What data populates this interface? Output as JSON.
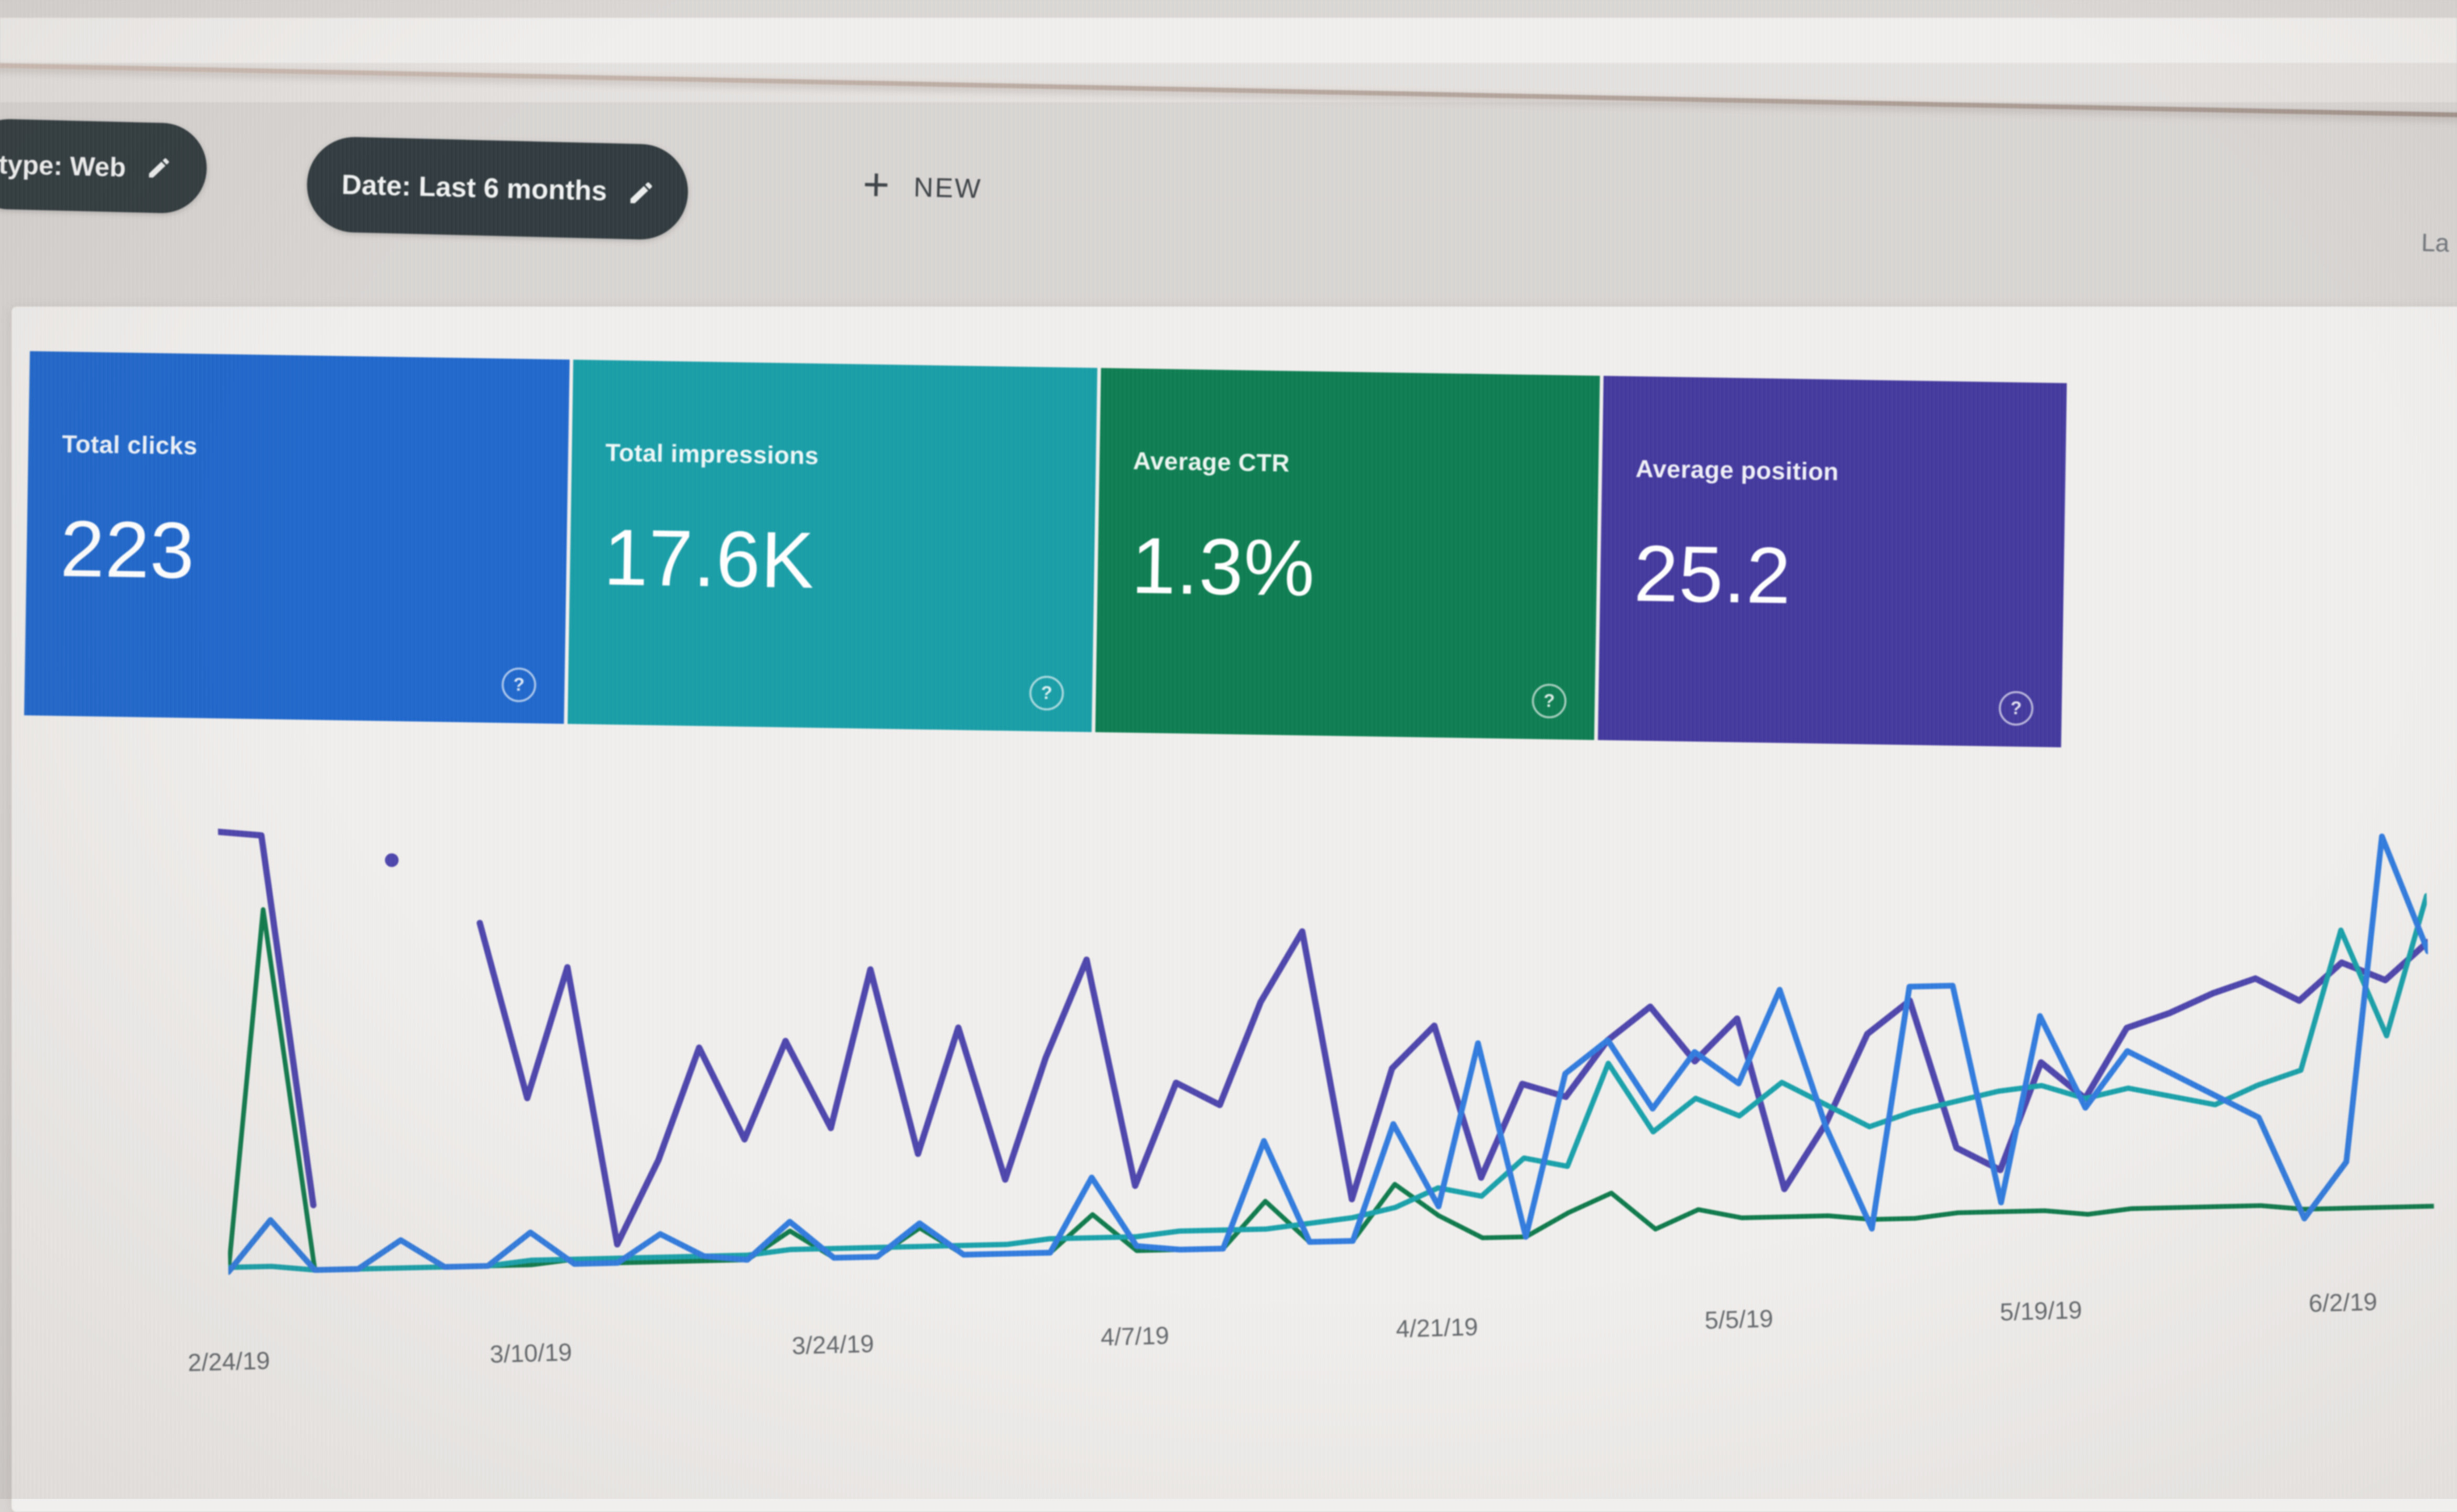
{
  "header": {
    "chips": [
      {
        "label": "type: Web",
        "icon": "pencil-icon"
      },
      {
        "label": "Date: Last 6 months",
        "icon": "pencil-icon"
      }
    ],
    "new_button": {
      "icon": "plus-icon",
      "label": "NEW"
    },
    "partial_text_right": "La"
  },
  "metric_cards": [
    {
      "title": "Total clicks",
      "value": "223",
      "bg": "#1e68d0",
      "icon": "help-icon"
    },
    {
      "title": "Total impressions",
      "value": "17.6K",
      "bg": "#169fa9",
      "icon": "help-icon"
    },
    {
      "title": "Average CTR",
      "value": "1.3%",
      "bg": "#0b7f51",
      "icon": "help-icon"
    },
    {
      "title": "Average position",
      "value": "25.2",
      "bg": "#443aa2",
      "icon": "help-icon"
    }
  ],
  "chart_data": {
    "type": "line",
    "title": "",
    "xlabel": "",
    "ylabel": "",
    "grid": false,
    "legend_visible": false,
    "ylim": [
      0,
      100
    ],
    "y_units": "estimated percent of plot height (no y-axis rendered in UI)",
    "x_tick_labels": [
      "2/24/19",
      "3/10/19",
      "3/24/19",
      "4/7/19",
      "4/21/19",
      "5/5/19",
      "5/19/19",
      "6/2/19"
    ],
    "x_tick_positions": [
      0,
      7,
      14,
      21,
      28,
      35,
      42,
      49
    ],
    "note": "4 daily series sampled every ~2 days; Position series has a data gap near the start with one isolated point rendered as a dot; values estimated from pixels",
    "series": [
      {
        "name": "Position",
        "color": "#4e46b0",
        "width": 12,
        "values": [
          97,
          96,
          16,
          null,
          90,
          null,
          76,
          38,
          66,
          6,
          24,
          48,
          28,
          49,
          30,
          64,
          24,
          51,
          18,
          44,
          65,
          16,
          38,
          33,
          55,
          70,
          12,
          40,
          49,
          16,
          36,
          33,
          45,
          52,
          40,
          49,
          12,
          26,
          45,
          52,
          20,
          15,
          38,
          30,
          45,
          48,
          52,
          55,
          50,
          58,
          54,
          62
        ]
      },
      {
        "name": "CTR",
        "color": "#0d7c4c",
        "width": 9,
        "values": [
          2,
          80,
          2,
          2,
          2,
          2,
          2,
          2,
          3,
          2,
          2,
          2,
          2,
          8,
          2,
          2,
          8,
          2,
          2,
          2,
          10,
          2,
          2,
          2,
          12,
          3,
          3,
          15,
          8,
          3,
          3,
          8,
          12,
          4,
          8,
          6,
          6,
          6,
          5,
          5,
          6,
          6,
          6,
          5,
          6,
          6,
          6,
          6,
          5,
          5,
          5,
          5
        ]
      },
      {
        "name": "Impressions",
        "color": "#16a2ac",
        "width": 10,
        "values": [
          3,
          3,
          2,
          2,
          2,
          2,
          2,
          3,
          3,
          3,
          3,
          3,
          3,
          4,
          4,
          4,
          4,
          4,
          4,
          5,
          5,
          5,
          6,
          6,
          6,
          7,
          8,
          10,
          14,
          12,
          20,
          18,
          40,
          25,
          32,
          28,
          35,
          30,
          25,
          28,
          30,
          32,
          33,
          30,
          32,
          30,
          28,
          32,
          35,
          65,
          42,
          72
        ]
      },
      {
        "name": "Clicks",
        "color": "#2f7ce2",
        "width": 11,
        "values": [
          2,
          13,
          2,
          2,
          8,
          2,
          2,
          9,
          2,
          2,
          8,
          3,
          2,
          10,
          2,
          2,
          9,
          2,
          2,
          2,
          18,
          3,
          2,
          2,
          25,
          3,
          3,
          28,
          10,
          45,
          3,
          38,
          45,
          30,
          42,
          35,
          55,
          25,
          3,
          55,
          55,
          8,
          48,
          28,
          40,
          35,
          30,
          25,
          3,
          15,
          85,
          60
        ]
      }
    ]
  }
}
